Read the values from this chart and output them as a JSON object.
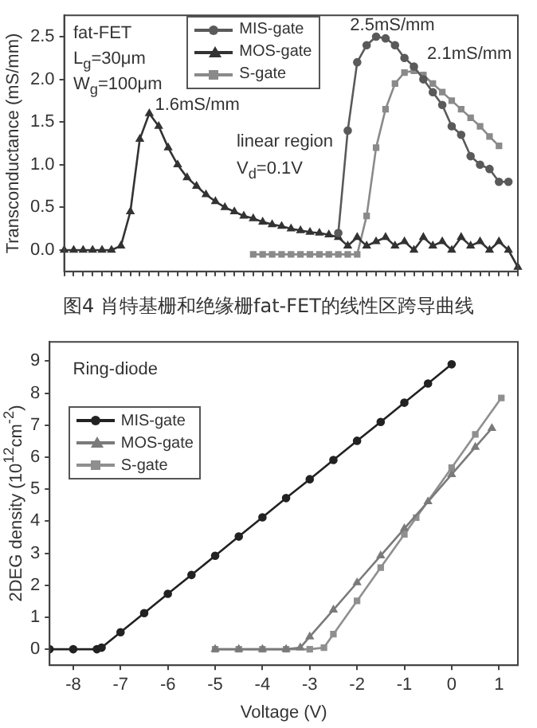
{
  "chart_data": [
    {
      "type": "line",
      "ylabel": "Transconductance (mS/mm)",
      "categories": [
        null,
        null,
        null,
        null,
        null,
        null,
        null,
        null,
        null,
        null,
        null,
        null,
        null,
        null,
        null,
        null,
        null,
        null,
        null,
        null,
        null,
        null,
        null,
        null,
        null,
        null,
        null,
        null,
        null,
        null,
        null,
        null,
        null,
        null,
        null,
        null,
        null,
        null,
        null,
        null,
        null,
        null,
        null,
        null,
        null,
        null,
        null,
        null,
        null
      ],
      "series": [
        {
          "name": "MIS-gate",
          "color": "#5a5a5a",
          "marker": "circle",
          "values": [
            null,
            null,
            null,
            null,
            null,
            null,
            null,
            null,
            null,
            null,
            null,
            null,
            null,
            null,
            null,
            null,
            null,
            null,
            null,
            null,
            null,
            null,
            null,
            null,
            null,
            null,
            null,
            null,
            null,
            0.2,
            1.4,
            2.2,
            2.4,
            2.5,
            2.48,
            2.4,
            2.25,
            2.15,
            2.0,
            1.85,
            1.7,
            1.45,
            1.35,
            1.1,
            1.0,
            0.95,
            0.8,
            0.8,
            null
          ]
        },
        {
          "name": "MOS-gate",
          "color": "#333333",
          "marker": "triangle",
          "values": [
            0,
            0,
            0,
            0,
            0,
            0,
            0.05,
            0.45,
            1.3,
            1.6,
            1.45,
            1.2,
            1.0,
            0.85,
            0.75,
            0.65,
            0.57,
            0.5,
            0.45,
            0.4,
            0.37,
            0.33,
            0.3,
            0.28,
            0.25,
            0.23,
            0.21,
            0.2,
            0.18,
            0.15,
            0.05,
            0.15,
            0.05,
            0.1,
            0.15,
            0.05,
            0.1,
            0,
            0.15,
            0.05,
            0.1,
            0,
            0.15,
            0.05,
            0.1,
            0,
            0.1,
            0,
            -0.2
          ]
        },
        {
          "name": "S-gate",
          "color": "#8a8a8a",
          "marker": "square",
          "values": [
            null,
            null,
            null,
            null,
            null,
            null,
            null,
            null,
            null,
            null,
            null,
            null,
            null,
            null,
            null,
            null,
            null,
            null,
            null,
            null,
            -0.05,
            -0.05,
            -0.05,
            -0.05,
            -0.05,
            -0.05,
            -0.05,
            -0.05,
            -0.05,
            -0.05,
            -0.05,
            -0.05,
            0.4,
            1.2,
            1.65,
            1.95,
            2.08,
            2.1,
            2.05,
            1.95,
            1.85,
            1.75,
            1.65,
            1.55,
            1.45,
            1.33,
            1.22,
            null,
            null
          ]
        }
      ],
      "ylim": [
        -0.25,
        2.75
      ],
      "yticks": [
        {
          "value": 0,
          "label": "0.0"
        },
        0.5,
        {
          "value": 1,
          "label": "1.0"
        },
        1.5,
        {
          "value": 2,
          "label": "2.0"
        },
        2.5
      ],
      "tick_labels": "y",
      "grid": false,
      "legend": "top",
      "annotations": [
        "fat-FET",
        "L$_{g}$=30μm",
        "W$_{g}$=100μm",
        "1.6mS/mm",
        "linear region",
        "V$_{d}$=0.1V",
        "2.5mS/mm",
        "2.1mS/mm",
        "图4 肖特基栅和绝缘栅fat-FET的线性区跨导曲线"
      ]
    },
    {
      "type": "line",
      "xlabel": "Voltage (V)",
      "ylabel": "2DEG density (10$^{12}$cm$^{-2}$)",
      "series": [
        {
          "name": "MIS-gate",
          "color": "#222222",
          "marker": "circle",
          "x": [
            -8.5,
            -8,
            -7.5,
            -7.4,
            -7,
            -6.5,
            -6,
            -5.5,
            -5,
            -4.5,
            -4,
            -3.5,
            -3,
            -2.5,
            -2,
            -1.5,
            -1,
            -0.5,
            0
          ],
          "values": [
            0,
            0,
            0,
            0.05,
            0.53,
            1.13,
            1.73,
            2.32,
            2.92,
            3.52,
            4.12,
            4.72,
            5.31,
            5.91,
            6.51,
            7.1,
            7.7,
            8.3,
            8.9
          ]
        },
        {
          "name": "MOS-gate",
          "color": "#7a7a7a",
          "marker": "triangle",
          "x": [
            -5,
            -4.5,
            -4,
            -3.5,
            -3.2,
            -3,
            -2.5,
            -2,
            -1.5,
            -1,
            -0.5,
            0,
            0.5,
            0.85
          ],
          "values": [
            0,
            0,
            0,
            0,
            0.05,
            0.39,
            1.23,
            2.08,
            2.92,
            3.77,
            4.61,
            5.46,
            6.31,
            6.9
          ]
        },
        {
          "name": "S-gate",
          "color": "#8f8f8f",
          "marker": "square",
          "x": [
            -5,
            -4.5,
            -4,
            -3.5,
            -3,
            -2.7,
            -2.5,
            -2,
            -1.5,
            -1,
            -0.75,
            0,
            0.5,
            1.05
          ],
          "values": [
            0,
            0,
            0,
            0,
            0,
            0.05,
            0.47,
            1.51,
            2.55,
            3.59,
            4.11,
            5.67,
            6.71,
            7.85
          ]
        }
      ],
      "xlim": [
        -8.5,
        1.4
      ],
      "xticks": [
        -8,
        -7,
        -6,
        -5,
        -4,
        -3,
        -2,
        -1,
        0,
        1
      ],
      "ylim": [
        -0.5,
        9.6
      ],
      "yticks": [
        0,
        1,
        2,
        3,
        4,
        5,
        6,
        7,
        8,
        9
      ],
      "grid": false,
      "legend": "top left",
      "annotations": [
        "Ring-diode"
      ]
    }
  ]
}
